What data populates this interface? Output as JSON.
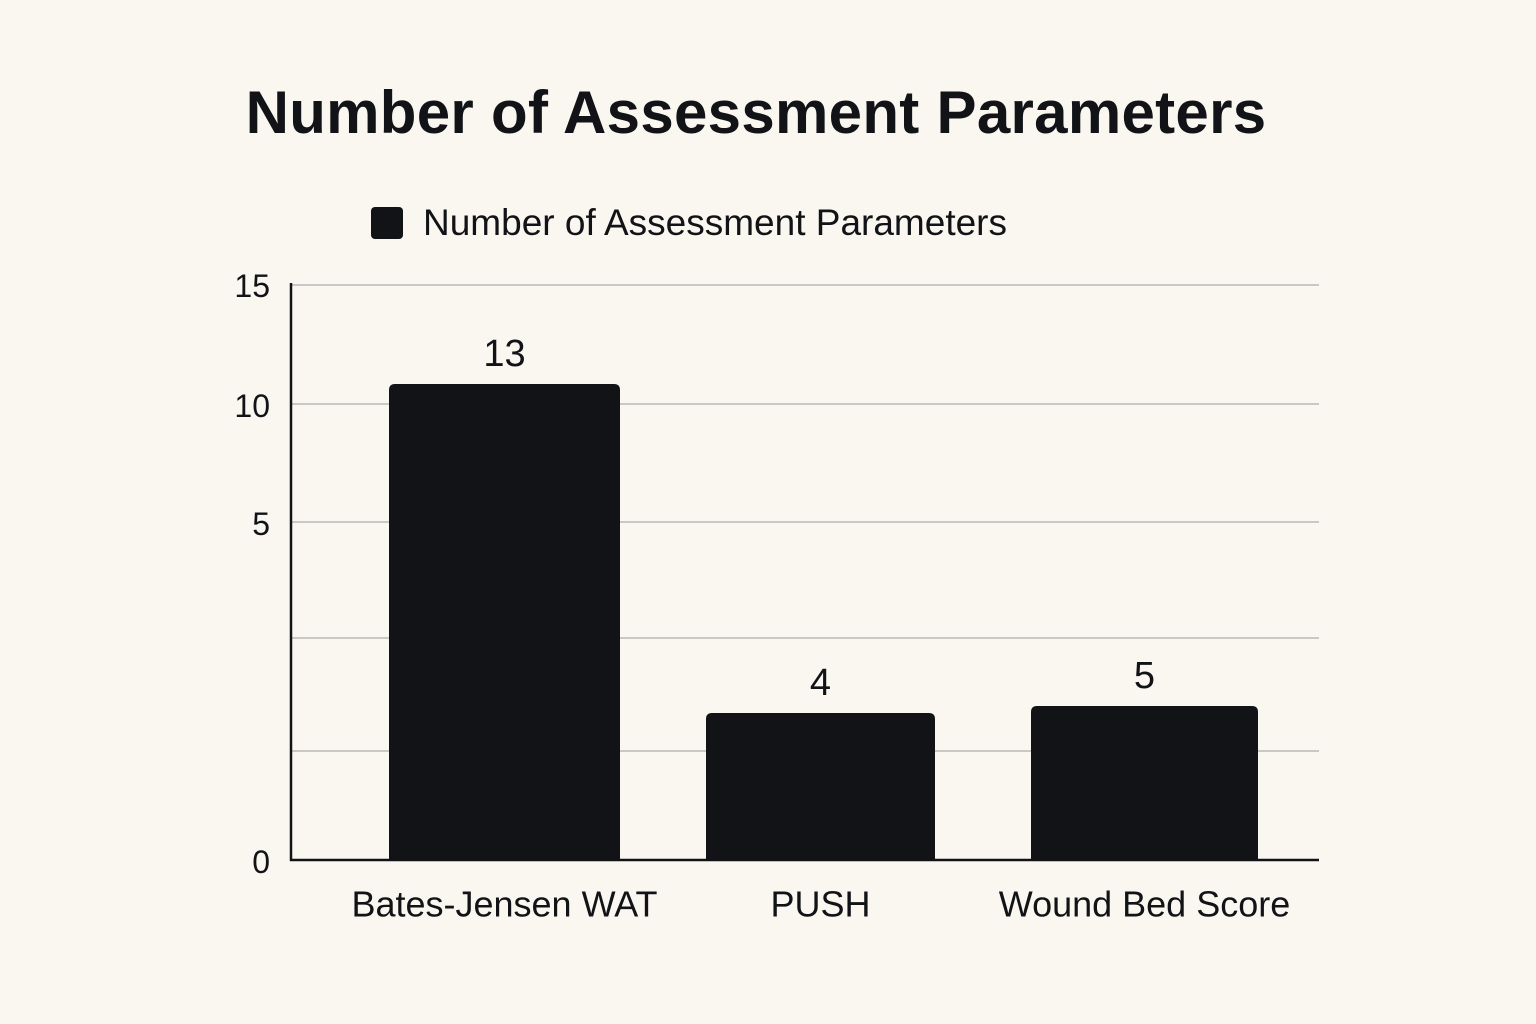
{
  "chart_data": {
    "type": "bar",
    "title": "Number of Assessment Parameters",
    "xlabel": "",
    "ylabel": "",
    "categories": [
      "Bates-Jensen WAT",
      "PUSH",
      "Wound Bed Score"
    ],
    "series": [
      {
        "name": "Number of Assessment Parameters",
        "values": [
          13,
          4,
          5
        ],
        "color": "#111317"
      }
    ],
    "data_labels": [
      "13",
      "4",
      "5"
    ],
    "y_ticks": [
      {
        "value": 0,
        "label": "0"
      },
      {
        "value": 5,
        "label": "5"
      },
      {
        "value": 10,
        "label": "10"
      },
      {
        "value": 15,
        "label": "15"
      }
    ],
    "grid": true,
    "legend_position": "top"
  }
}
